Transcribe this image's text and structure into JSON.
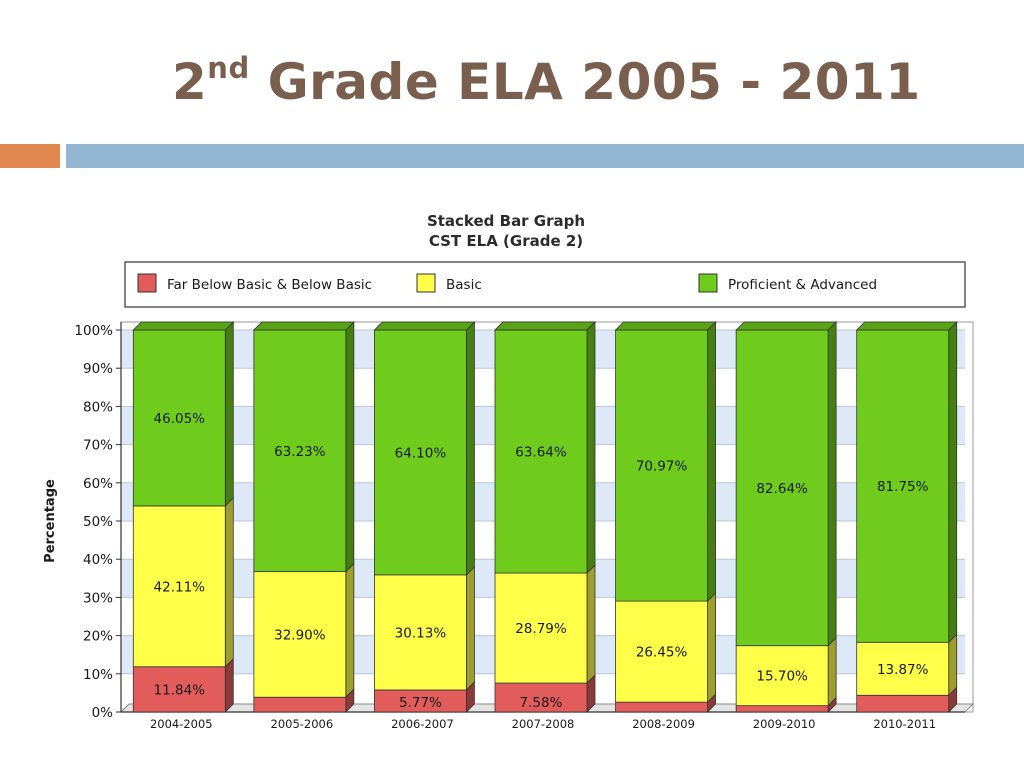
{
  "slide": {
    "title_main": "2",
    "title_sup": "nd",
    "title_rest": " Grade ELA 2005 - 2011"
  },
  "chart_data": {
    "type": "bar",
    "stacked": true,
    "title_line1": "Stacked Bar Graph",
    "title_line2": "CST ELA (Grade 2)",
    "xlabel": "",
    "ylabel": "Percentage",
    "ylim": [
      0,
      100
    ],
    "yticks": [
      "0%",
      "10%",
      "20%",
      "30%",
      "40%",
      "50%",
      "60%",
      "70%",
      "80%",
      "90%",
      "100%"
    ],
    "legend_position": "top",
    "grid": true,
    "categories": [
      "2004-2005",
      "2005-2006",
      "2006-2007",
      "2007-2008",
      "2008-2009",
      "2009-2010",
      "2010-2011"
    ],
    "series": [
      {
        "name": "Far Below Basic & Below Basic",
        "color": "#e25c5c",
        "values": [
          11.84,
          3.87,
          5.77,
          7.58,
          2.58,
          1.66,
          4.38
        ],
        "labels": [
          "11.84%",
          "",
          "5.77%",
          "7.58%",
          "",
          "",
          ""
        ]
      },
      {
        "name": "Basic",
        "color": "#ffff4a",
        "values": [
          42.11,
          32.9,
          30.13,
          28.79,
          26.45,
          15.7,
          13.87
        ],
        "labels": [
          "42.11%",
          "32.90%",
          "30.13%",
          "28.79%",
          "26.45%",
          "15.70%",
          "13.87%"
        ]
      },
      {
        "name": "Proficient & Advanced",
        "color": "#6fcc1c",
        "values": [
          46.05,
          63.23,
          64.1,
          63.64,
          70.97,
          82.64,
          81.75
        ],
        "labels": [
          "46.05%",
          "63.23%",
          "64.10%",
          "63.64%",
          "70.97%",
          "82.64%",
          "81.75%"
        ]
      }
    ]
  }
}
